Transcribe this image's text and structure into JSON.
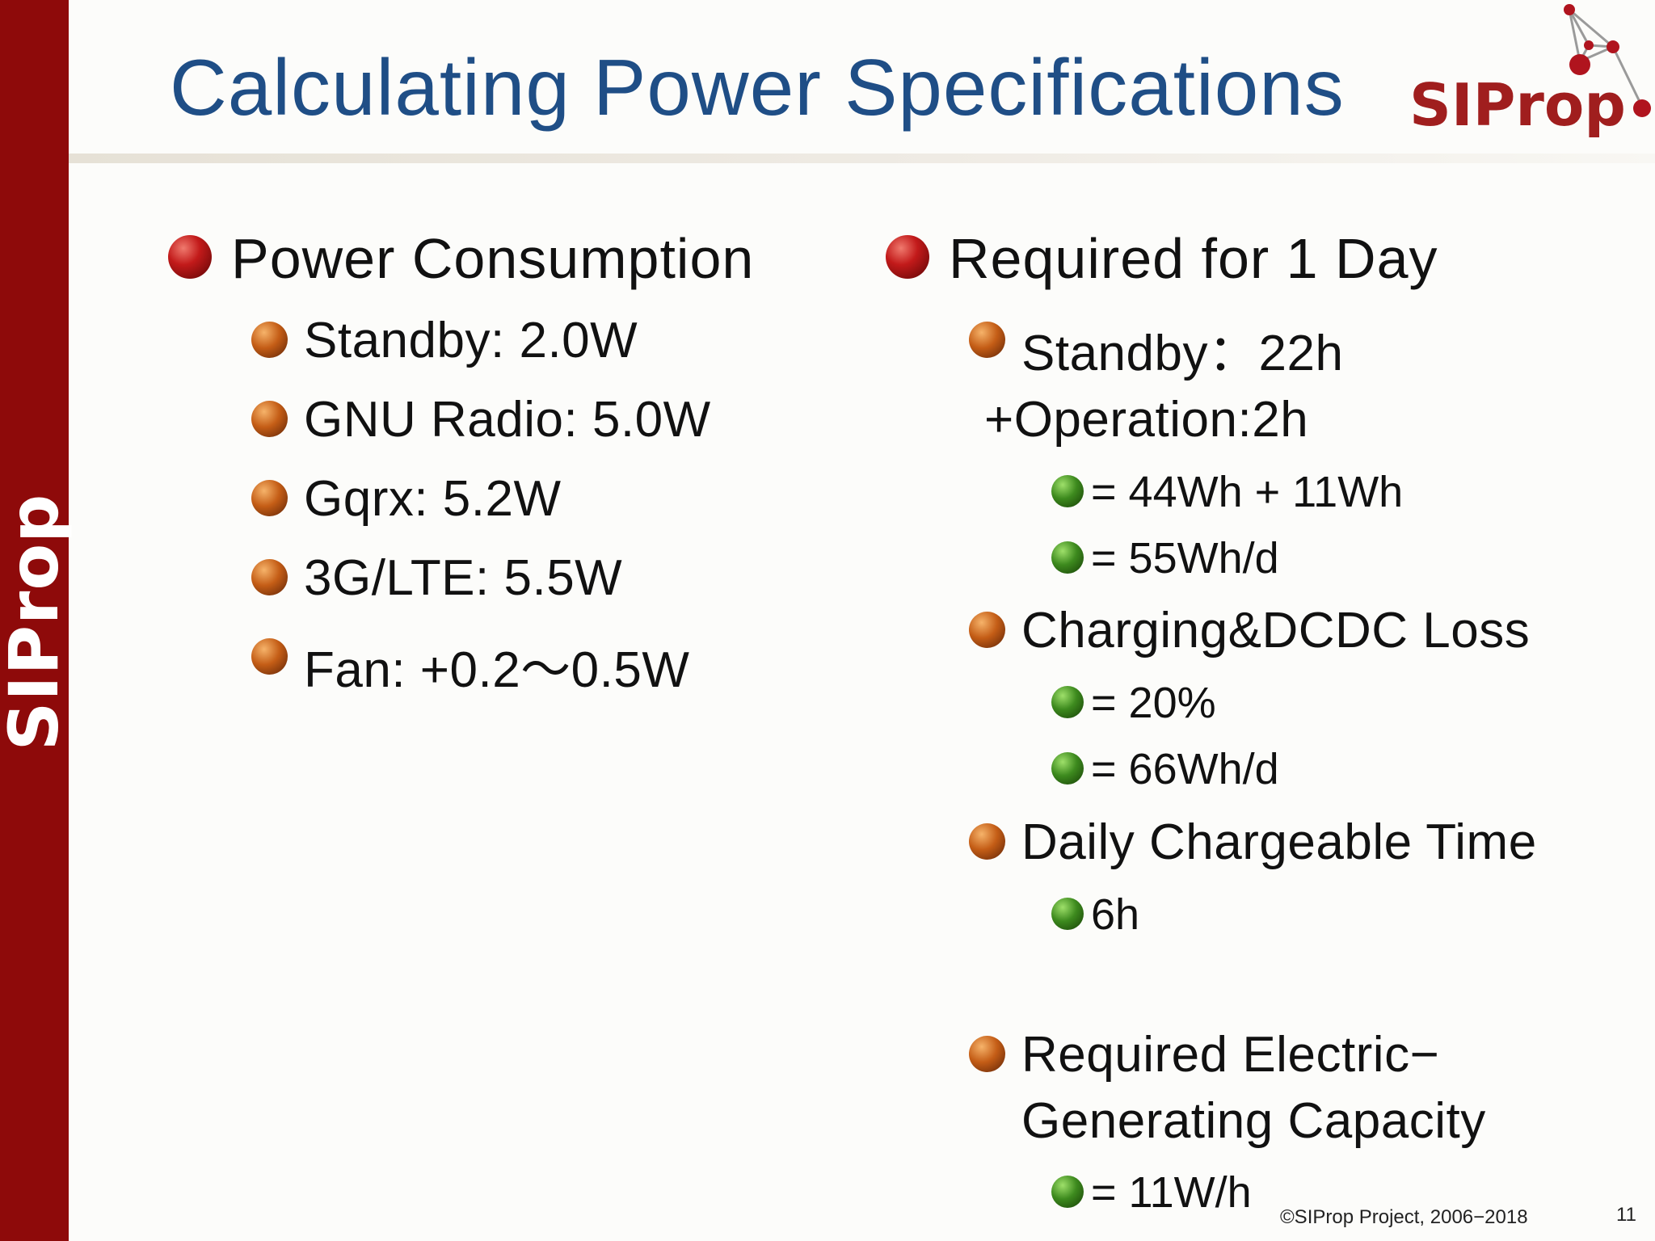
{
  "sidebar": {
    "brand": "SIProp"
  },
  "title": "Calculating Power Specifications",
  "logo": {
    "text": "SIProp"
  },
  "left_column": {
    "heading": "Power Consumption",
    "items": [
      "Standby: 2.0W",
      "GNU Radio: 5.0W",
      "Gqrx: 5.2W",
      "3G/LTE: 5.5W",
      "Fan: +0.2〜0.5W"
    ]
  },
  "right_column": {
    "heading": "Required for 1 Day",
    "standby": "Standby：22h",
    "operation": "+Operation:2h",
    "standby_sub": [
      "= 44Wh + 11Wh",
      "= 55Wh/d"
    ],
    "loss": "Charging&DCDC Loss",
    "loss_sub": [
      "= 20%",
      "= 66Wh/d"
    ],
    "daily": "Daily Chargeable Time",
    "daily_sub": [
      "6h"
    ],
    "capacity_line1": "Required Electric−",
    "capacity_line2": "Generating Capacity",
    "capacity_sub": [
      "= 11W/h"
    ]
  },
  "footer": {
    "copyright": "©SIProp Project, 2006−2018",
    "page_number": "11"
  },
  "colors": {
    "sidebar": "#8e0a0a",
    "title": "#1f4e86",
    "logo": "#a01e1e",
    "bullet_level1": "#c21a1a",
    "bullet_level2": "#c45d16",
    "bullet_level3": "#3d8a1e"
  }
}
